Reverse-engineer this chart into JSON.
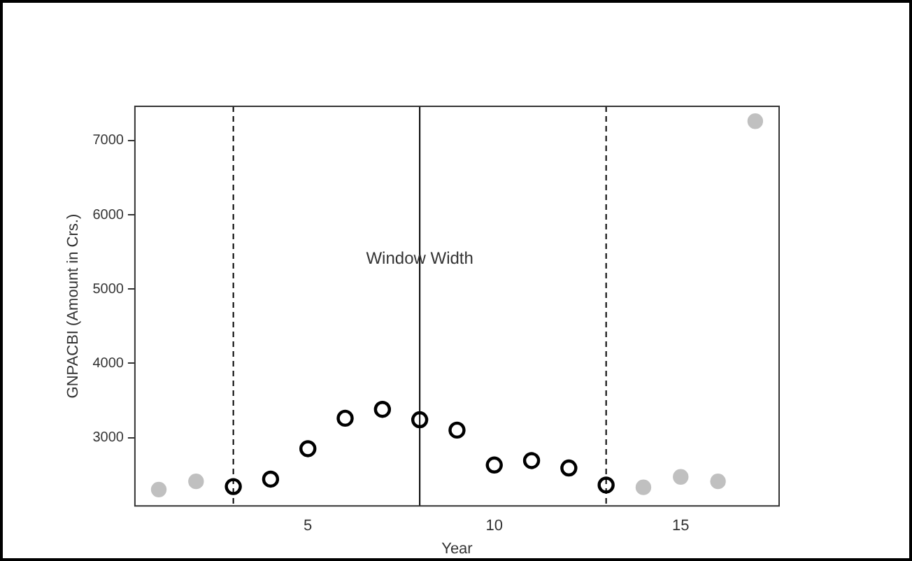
{
  "chart_data": {
    "type": "scatter",
    "xlabel": "Year",
    "ylabel": "GNPACBI (Amount in Crs.)",
    "xlim": [
      0.36,
      17.64
    ],
    "xticks": [
      5,
      10,
      15
    ],
    "ylim": [
      2080,
      7460
    ],
    "yticks": [
      3000,
      4000,
      5000,
      6000,
      7000
    ],
    "grid": false,
    "legend": false,
    "marker": "circle",
    "series": [
      {
        "color": "#c0c0c0",
        "x": [
          1,
          2,
          14,
          15,
          16,
          17
        ],
        "values": [
          2300,
          2410,
          2330,
          2470,
          2410,
          7260
        ]
      },
      {
        "color": "#000000",
        "x": [
          3,
          4,
          5,
          6,
          7,
          8,
          9,
          10,
          11,
          12,
          13
        ],
        "values": [
          2340,
          2440,
          2850,
          3260,
          3380,
          3240,
          3100,
          2630,
          2690,
          2590,
          2360
        ]
      }
    ],
    "ref_lines": [
      {
        "axis": "x",
        "value": 3,
        "line_style": "dashed"
      },
      {
        "axis": "x",
        "value": 8,
        "line_style": "solid"
      },
      {
        "axis": "x",
        "value": 13,
        "line_style": "dashed"
      }
    ],
    "annotations": [
      {
        "text": "Window Width",
        "x": 8,
        "y": 5400
      }
    ]
  }
}
